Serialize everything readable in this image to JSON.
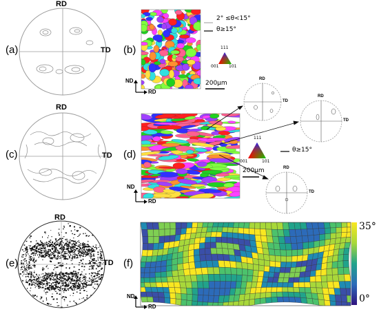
{
  "panels": {
    "a": {
      "label": "(a)",
      "rd": "RD",
      "td": "TD"
    },
    "b": {
      "label": "(b)",
      "legend_low": "2° ≤θ<15°",
      "legend_high": "θ≥15°",
      "tri_top": "111",
      "tri_left": "001",
      "tri_right": "101",
      "scale": "200μm",
      "nd": "ND",
      "rd": "RD"
    },
    "c": {
      "label": "(c)",
      "rd": "RD",
      "td": "TD"
    },
    "d": {
      "label": "(d)",
      "legend_high": "θ≥15°",
      "tri_top": "111",
      "tri_left": "001",
      "tri_right": "101",
      "scale": "200μm",
      "nd": "ND",
      "rd": "RD",
      "insets": [
        {
          "rd": "RD",
          "td": "TD"
        },
        {
          "rd": "RD",
          "td": "TD"
        },
        {
          "rd": "RD",
          "td": "TD"
        }
      ]
    },
    "e": {
      "label": "(e)",
      "rd": "RD",
      "td": "TD"
    },
    "f": {
      "label": "(f)",
      "colorbar_max": "35°",
      "colorbar_min": "0°",
      "nd": "ND",
      "rd": "RD"
    }
  },
  "colors": {
    "line": "#9a9a9a",
    "dark": "#222222",
    "colorbar_top": "#f9e721",
    "colorbar_mid": "#21a38b",
    "colorbar_bottom": "#30137e"
  }
}
